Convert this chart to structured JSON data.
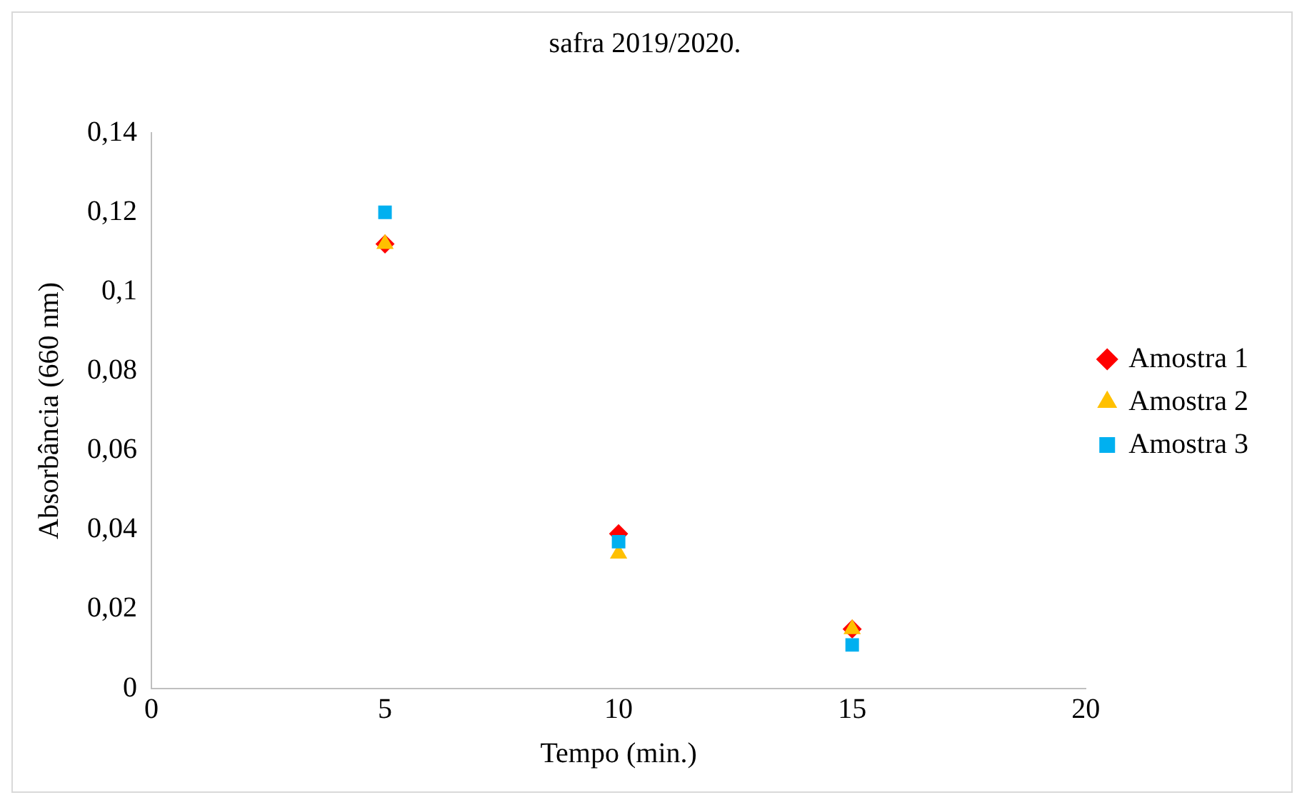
{
  "chart_data": {
    "type": "scatter",
    "title": "safra 2019/2020.",
    "xlabel": "Tempo (min.)",
    "ylabel": "Absorbância (660 nm)",
    "x": [
      5,
      10,
      15
    ],
    "series": [
      {
        "name": "Amostra 1",
        "color": "#ff0000",
        "marker": "diamond",
        "values": [
          0.112,
          0.039,
          0.015
        ]
      },
      {
        "name": "Amostra 2",
        "color": "#ffc000",
        "marker": "triangle",
        "values": [
          0.112,
          0.034,
          0.015
        ]
      },
      {
        "name": "Amostra 3",
        "color": "#00b0f0",
        "marker": "square",
        "values": [
          0.12,
          0.037,
          0.011
        ]
      }
    ],
    "xlim": [
      0,
      20
    ],
    "xticks": [
      0,
      5,
      10,
      15,
      20
    ],
    "ylim": [
      0,
      0.14
    ],
    "yticks": [
      0,
      {
        "value": 0.02,
        "label": "0,02"
      },
      {
        "value": 0.04,
        "label": "0,04"
      },
      {
        "value": 0.06,
        "label": "0,06"
      },
      {
        "value": 0.08,
        "label": "0,08"
      },
      {
        "value": 0.1,
        "label": "0,1"
      },
      {
        "value": 0.12,
        "label": "0,12"
      },
      {
        "value": 0.14,
        "label": "0,14"
      }
    ],
    "grid": false,
    "legend": "right"
  }
}
